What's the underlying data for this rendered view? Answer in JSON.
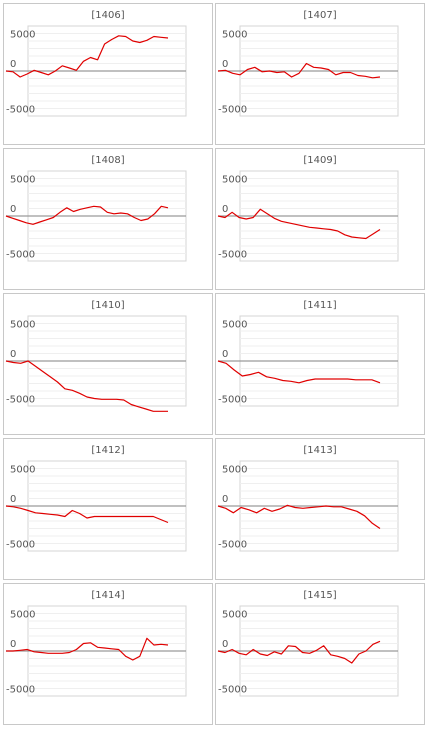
{
  "chart_data": [
    {
      "type": "line",
      "title": "[1406]",
      "ylim": [
        -6000,
        6000
      ],
      "yticks": [
        "5000",
        "0",
        "-5000"
      ],
      "series": [
        {
          "values": [
            0,
            -100,
            -800,
            -400,
            100,
            -200,
            -500,
            0,
            700,
            400,
            100,
            1300,
            1800,
            1500,
            3600,
            4200,
            4700,
            4600,
            4000,
            3800,
            4100,
            4600,
            4500,
            4400
          ]
        }
      ],
      "color": "#e00000"
    },
    {
      "type": "line",
      "title": "[1407]",
      "ylim": [
        -6000,
        6000
      ],
      "yticks": [
        "5000",
        "0",
        "-5000"
      ],
      "series": [
        {
          "values": [
            0,
            100,
            -300,
            -500,
            200,
            500,
            -100,
            0,
            -200,
            -100,
            -800,
            -300,
            1000,
            500,
            400,
            200,
            -500,
            -200,
            -200,
            -600,
            -700,
            -900,
            -800
          ]
        }
      ],
      "color": "#e00000"
    },
    {
      "type": "line",
      "title": "[1408]",
      "ylim": [
        -6000,
        6000
      ],
      "yticks": [
        "5000",
        "0",
        "-5000"
      ],
      "series": [
        {
          "values": [
            0,
            -300,
            -600,
            -900,
            -1100,
            -800,
            -500,
            -200,
            500,
            1100,
            600,
            900,
            1100,
            1300,
            1200,
            500,
            300,
            400,
            300,
            -200,
            -600,
            -400,
            300,
            1300,
            1100
          ]
        }
      ],
      "color": "#e00000"
    },
    {
      "type": "line",
      "title": "[1409]",
      "ylim": [
        -6000,
        6000
      ],
      "yticks": [
        "5000",
        "0",
        "-5000"
      ],
      "series": [
        {
          "values": [
            0,
            -200,
            500,
            -200,
            -400,
            -200,
            900,
            300,
            -300,
            -700,
            -900,
            -1100,
            -1300,
            -1500,
            -1600,
            -1700,
            -1800,
            -2000,
            -2500,
            -2800,
            -2900,
            -3000,
            -2400,
            -1800
          ]
        }
      ],
      "color": "#e00000"
    },
    {
      "type": "line",
      "title": "[1410]",
      "ylim": [
        -6000,
        6000
      ],
      "yticks": [
        "5000",
        "0",
        "-5000"
      ],
      "series": [
        {
          "values": [
            0,
            -200,
            -300,
            0,
            -700,
            -1400,
            -2100,
            -2800,
            -3700,
            -3900,
            -4300,
            -4800,
            -5000,
            -5100,
            -5100,
            -5100,
            -5200,
            -5800,
            -6100,
            -6400,
            -6700,
            -6700,
            -6700
          ]
        }
      ],
      "color": "#e00000"
    },
    {
      "type": "line",
      "title": "[1411]",
      "ylim": [
        -6000,
        6000
      ],
      "yticks": [
        "5000",
        "0",
        "-5000"
      ],
      "series": [
        {
          "values": [
            0,
            -300,
            -1200,
            -2000,
            -1800,
            -1500,
            -2100,
            -2300,
            -2600,
            -2700,
            -2900,
            -2600,
            -2400,
            -2400,
            -2400,
            -2400,
            -2400,
            -2500,
            -2500,
            -2500,
            -2900
          ]
        }
      ],
      "color": "#e00000"
    },
    {
      "type": "line",
      "title": "[1412]",
      "ylim": [
        -6000,
        6000
      ],
      "yticks": [
        "5000",
        "0",
        "-5000"
      ],
      "series": [
        {
          "values": [
            0,
            -100,
            -300,
            -600,
            -900,
            -1000,
            -1100,
            -1200,
            -1400,
            -600,
            -1000,
            -1600,
            -1400,
            -1400,
            -1400,
            -1400,
            -1400,
            -1400,
            -1400,
            -1400,
            -1400,
            -1800,
            -2200
          ]
        }
      ],
      "color": "#e00000"
    },
    {
      "type": "line",
      "title": "[1413]",
      "ylim": [
        -6000,
        6000
      ],
      "yticks": [
        "5000",
        "0",
        "-5000"
      ],
      "series": [
        {
          "values": [
            0,
            -300,
            -900,
            -200,
            -500,
            -900,
            -300,
            -700,
            -400,
            100,
            -200,
            -300,
            -200,
            -100,
            0,
            -100,
            -100,
            -400,
            -700,
            -1300,
            -2300,
            -3000
          ]
        }
      ],
      "color": "#e00000"
    },
    {
      "type": "line",
      "title": "[1414]",
      "ylim": [
        -6000,
        6000
      ],
      "yticks": [
        "5000",
        "0",
        "-5000"
      ],
      "series": [
        {
          "values": [
            0,
            0,
            100,
            200,
            -100,
            -200,
            -300,
            -300,
            -300,
            -200,
            200,
            1000,
            1100,
            500,
            400,
            300,
            200,
            -700,
            -1200,
            -700,
            1700,
            800,
            900,
            800
          ]
        }
      ],
      "color": "#e00000"
    },
    {
      "type": "line",
      "title": "[1415]",
      "ylim": [
        -6000,
        6000
      ],
      "yticks": [
        "5000",
        "0",
        "-5000"
      ],
      "series": [
        {
          "values": [
            0,
            -200,
            200,
            -300,
            -500,
            200,
            -400,
            -600,
            -100,
            -400,
            700,
            600,
            -200,
            -300,
            100,
            700,
            -500,
            -700,
            -1000,
            -1600,
            -400,
            0,
            900,
            1300
          ]
        }
      ],
      "color": "#e00000"
    }
  ]
}
